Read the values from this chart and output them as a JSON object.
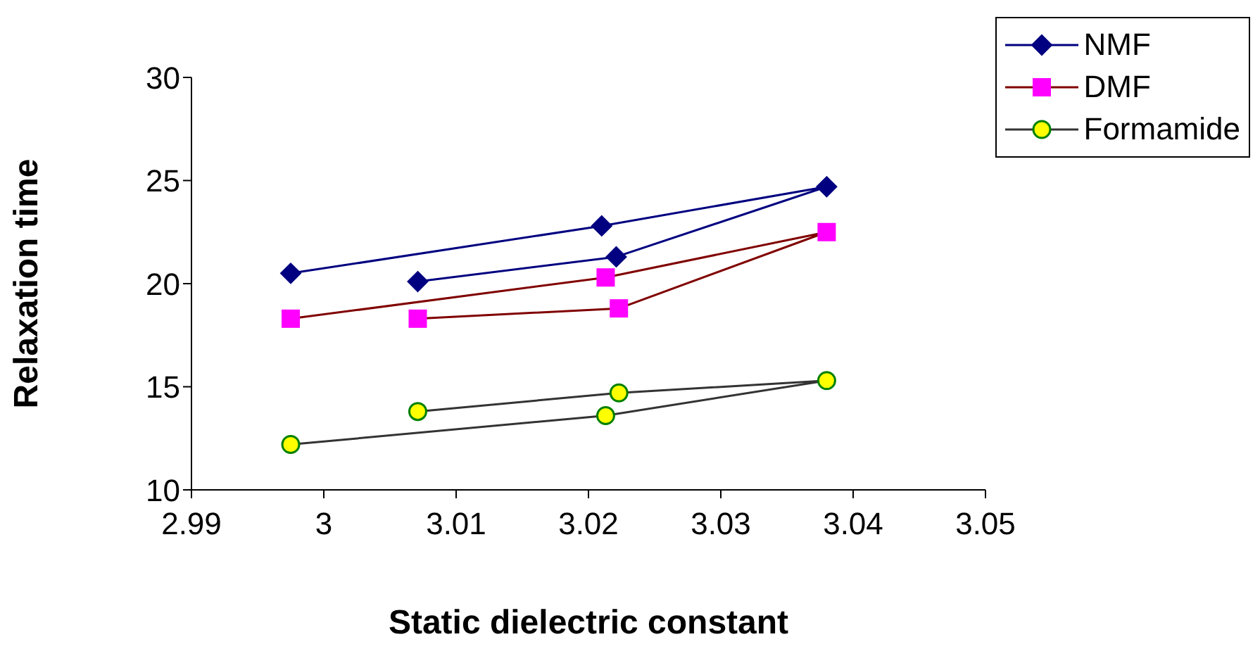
{
  "chart_data": {
    "type": "line",
    "xlabel": "Static dielectric constant",
    "ylabel": "Relaxation time",
    "xlim": [
      2.99,
      3.05
    ],
    "xticks": [
      2.99,
      3,
      3.01,
      3.02,
      3.03,
      3.04,
      3.05
    ],
    "ylim": [
      10,
      30
    ],
    "yticks": [
      10,
      15,
      20,
      25,
      30
    ],
    "grid": false,
    "legend": "top right",
    "line_style": "solid",
    "series": [
      {
        "name": "NMF",
        "color": "#000080",
        "marker": "diamond",
        "x": [
          2.9975,
          3.021,
          3.038,
          3.0221,
          3.0071
        ],
        "values": [
          20.5,
          22.8,
          24.7,
          21.3,
          20.1
        ]
      },
      {
        "name": "DMF",
        "color": "#800000",
        "marker": "square",
        "x": [
          2.9975,
          3.0213,
          3.038,
          3.0223,
          3.0071
        ],
        "values": [
          18.3,
          20.3,
          22.5,
          18.8,
          18.3
        ]
      },
      {
        "name": "Formamide",
        "color": "#333333",
        "marker": "circle",
        "x": [
          2.9975,
          3.0213,
          3.038,
          3.0223,
          3.0071
        ],
        "values": [
          12.2,
          13.6,
          15.3,
          14.7,
          13.8
        ]
      }
    ]
  }
}
